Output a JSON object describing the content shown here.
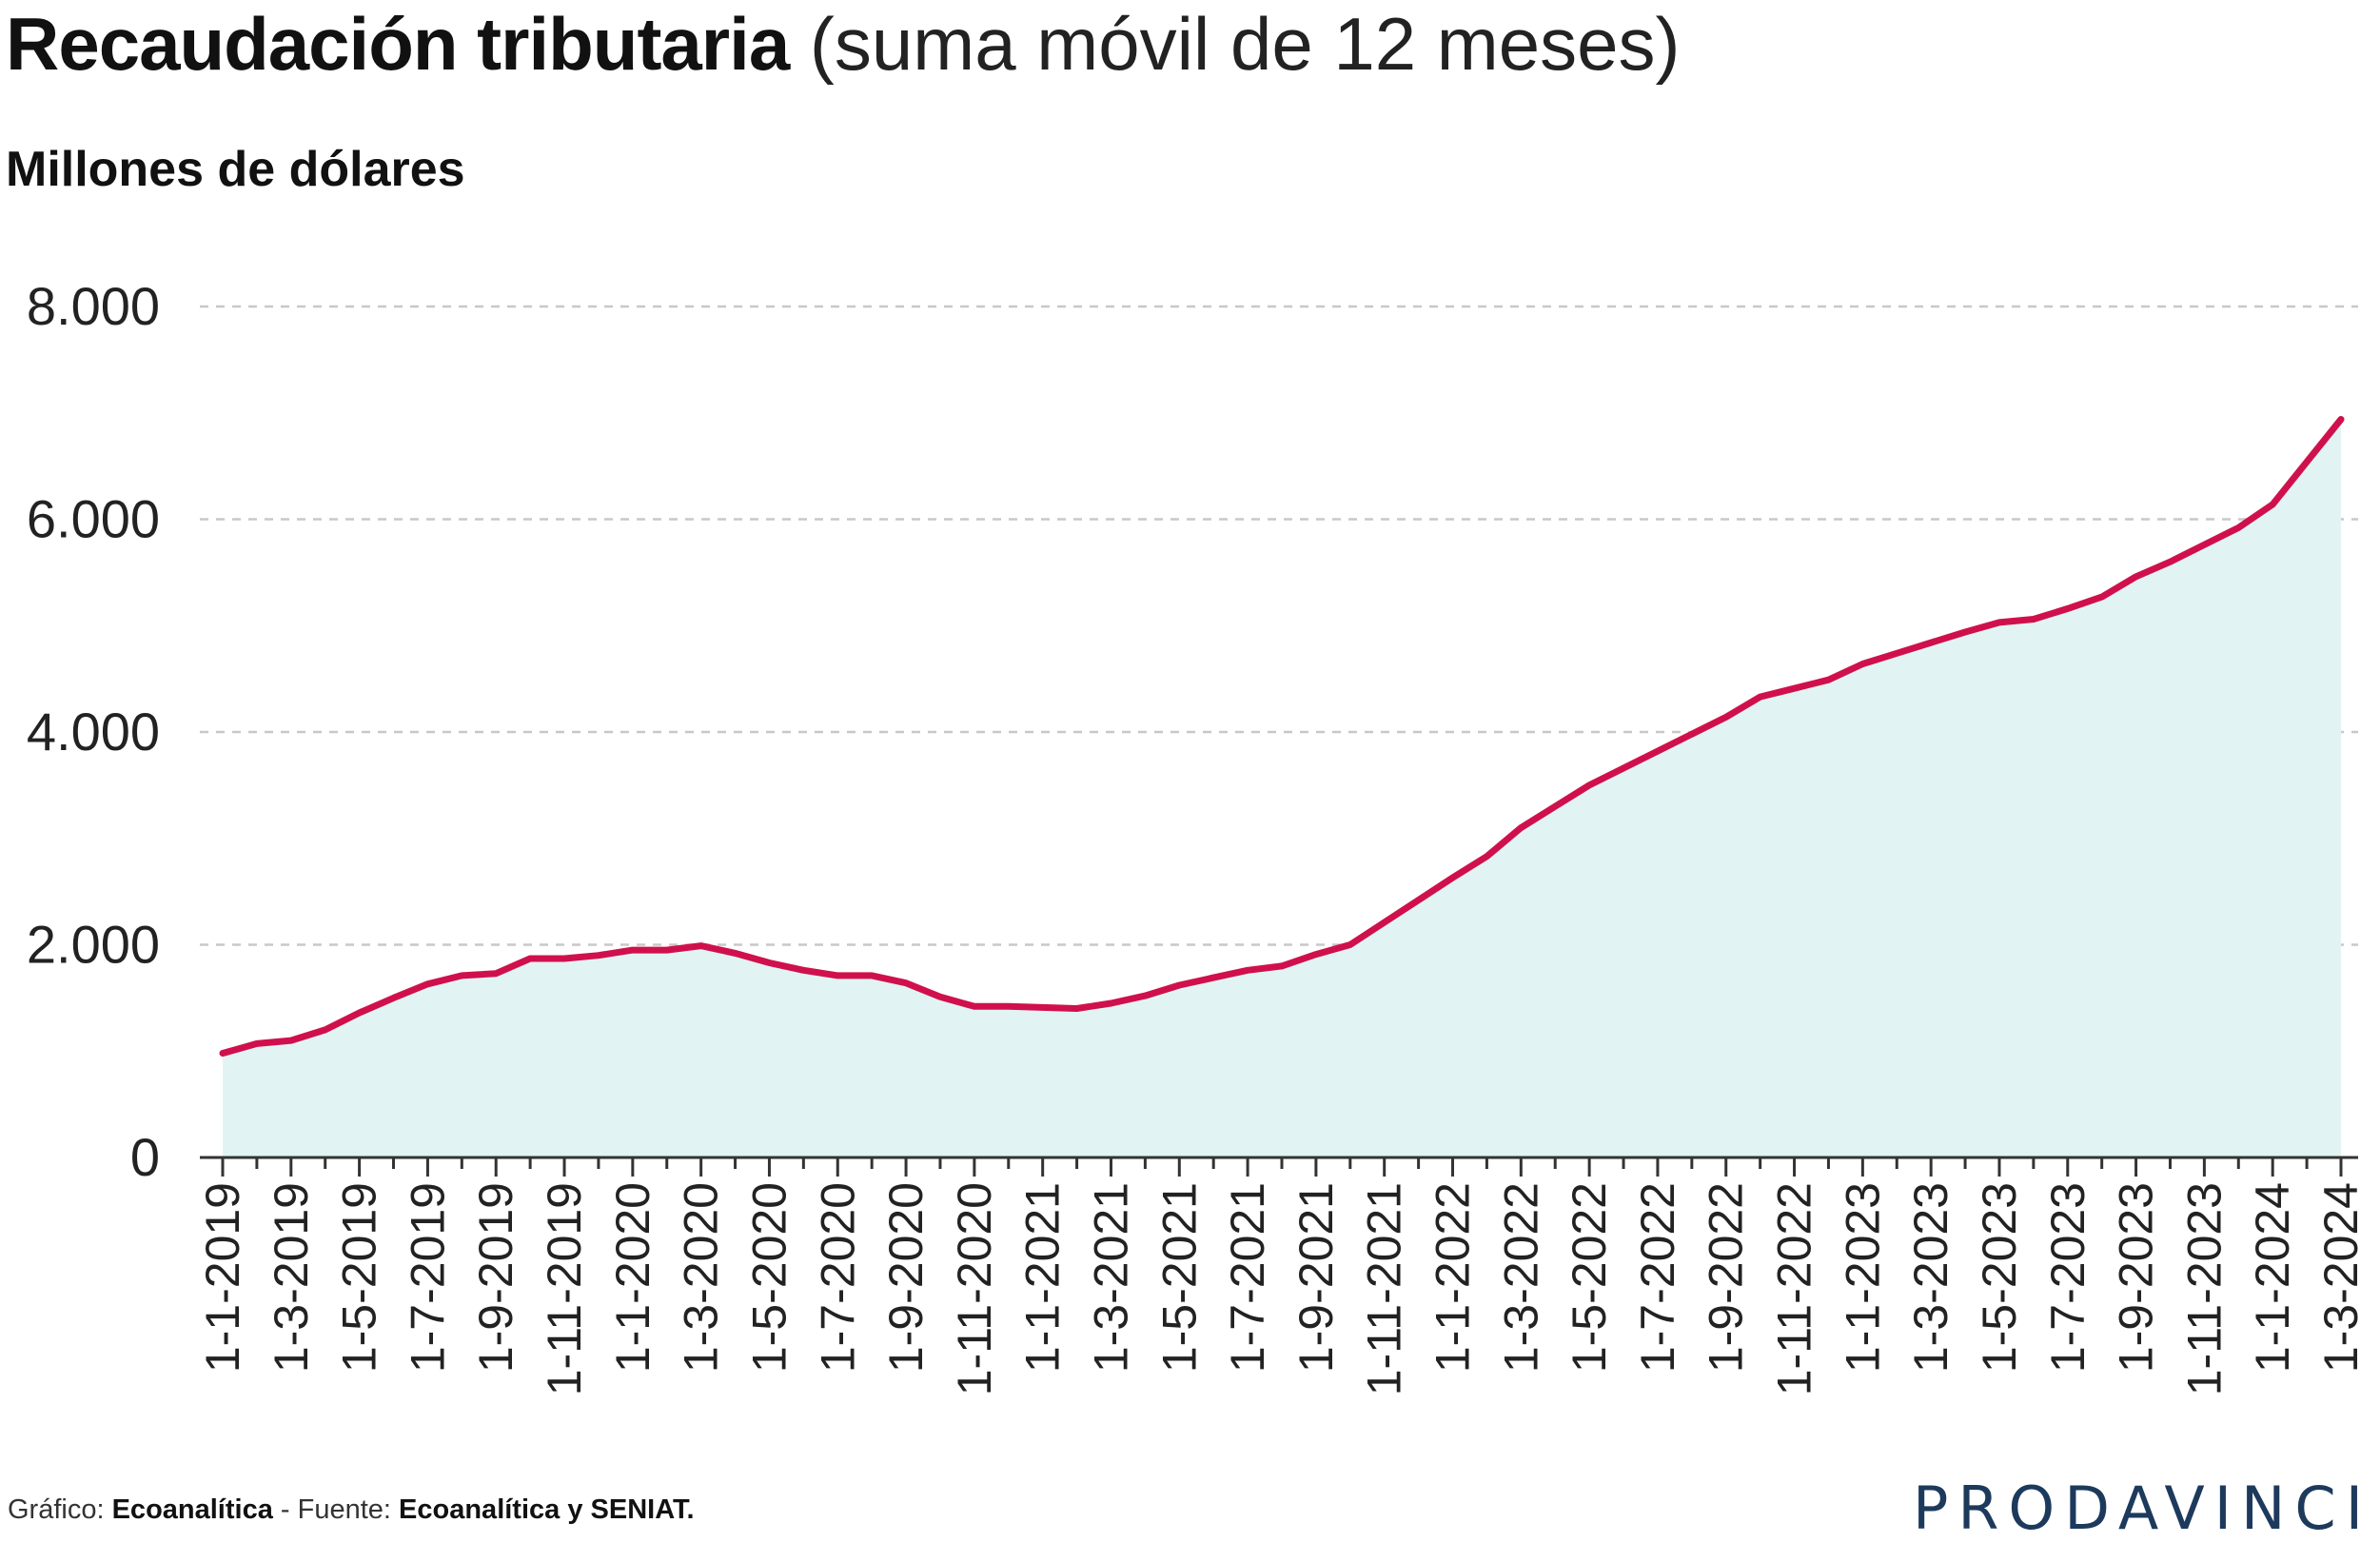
{
  "header": {
    "title_bold": "Recaudación tributaria",
    "title_rest": "(suma móvil de 12 meses)",
    "subtitle": "Millones de dólares"
  },
  "footer": {
    "credit_label": "Gráfico: ",
    "credit_value": "Ecoanalítica",
    "separator": " - ",
    "source_label": "Fuente: ",
    "source_value": "Ecoanalítica y SENIAT."
  },
  "brand": {
    "logo_text": "PRODAVINCI"
  },
  "colors": {
    "line": "#d0104c",
    "area": "#e2f3f3",
    "grid": "#c8c8c8",
    "axis": "#333333"
  },
  "chart_data": {
    "type": "area",
    "title": "Recaudación tributaria (suma móvil de 12 meses)",
    "ylabel": "Millones de dólares",
    "ylim": [
      0,
      8000
    ],
    "yticks": [
      0,
      2000,
      4000,
      6000,
      8000
    ],
    "ytick_labels": [
      "0",
      "2.000",
      "4.000",
      "6.000",
      "8.000"
    ],
    "grid": "horizontal dashed",
    "xtick_labels": [
      "1-1-2019",
      "1-3-2019",
      "1-5-2019",
      "1-7-2019",
      "1-9-2019",
      "1-11-2019",
      "1-1-2020",
      "1-3-2020",
      "1-5-2020",
      "1-7-2020",
      "1-9-2020",
      "1-11-2020",
      "1-1-2021",
      "1-3-2021",
      "1-5-2021",
      "1-7-2021",
      "1-9-2021",
      "1-11-2021",
      "1-1-2022",
      "1-3-2022",
      "1-5-2022",
      "1-7-2022",
      "1-9-2022",
      "1-11-2022",
      "1-1-2023",
      "1-3-2023",
      "1-5-2023",
      "1-7-2023",
      "1-9-2023",
      "1-11-2023",
      "1-1-2024",
      "1-3-2024"
    ],
    "x": [
      "2019-01",
      "2019-02",
      "2019-03",
      "2019-04",
      "2019-05",
      "2019-06",
      "2019-07",
      "2019-08",
      "2019-09",
      "2019-10",
      "2019-11",
      "2019-12",
      "2020-01",
      "2020-02",
      "2020-03",
      "2020-04",
      "2020-05",
      "2020-06",
      "2020-07",
      "2020-08",
      "2020-09",
      "2020-10",
      "2020-11",
      "2020-12",
      "2021-01",
      "2021-02",
      "2021-03",
      "2021-04",
      "2021-05",
      "2021-06",
      "2021-07",
      "2021-08",
      "2021-09",
      "2021-10",
      "2021-11",
      "2021-12",
      "2022-01",
      "2022-02",
      "2022-03",
      "2022-04",
      "2022-05",
      "2022-06",
      "2022-07",
      "2022-08",
      "2022-09",
      "2022-10",
      "2022-11",
      "2022-12",
      "2023-01",
      "2023-02",
      "2023-03",
      "2023-04",
      "2023-05",
      "2023-06",
      "2023-07",
      "2023-08",
      "2023-09",
      "2023-10",
      "2023-11",
      "2023-12",
      "2024-01",
      "2024-02",
      "2024-03"
    ],
    "values": [
      980,
      1070,
      1100,
      1200,
      1360,
      1500,
      1630,
      1710,
      1730,
      1870,
      1870,
      1900,
      1950,
      1950,
      1990,
      1920,
      1830,
      1760,
      1710,
      1710,
      1640,
      1510,
      1420,
      1420,
      1410,
      1400,
      1450,
      1520,
      1620,
      1690,
      1760,
      1800,
      1910,
      2000,
      2210,
      2420,
      2630,
      2830,
      3100,
      3300,
      3500,
      3660,
      3820,
      3980,
      4140,
      4330,
      4410,
      4490,
      4640,
      4740,
      4840,
      4940,
      5030,
      5060,
      5160,
      5270,
      5460,
      5600,
      5760,
      5920,
      6140,
      6540,
      6940
    ]
  }
}
